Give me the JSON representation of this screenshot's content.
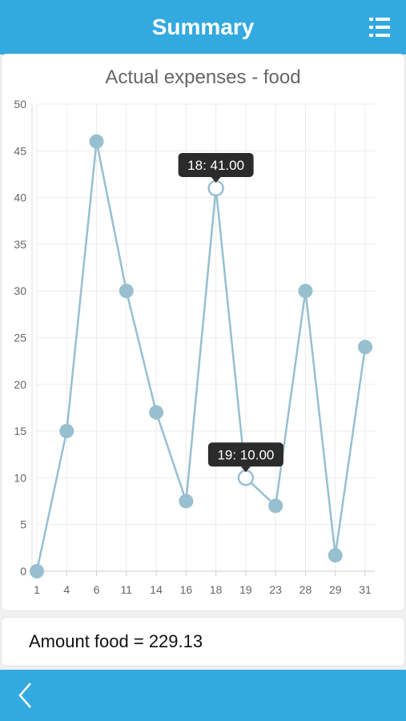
{
  "header": {
    "title": "Summary",
    "menu_icon": "list-menu-icon"
  },
  "footer": {
    "back_icon": "chevron-left-icon"
  },
  "summary": {
    "amount_text": "Amount food = 229.13"
  },
  "colors": {
    "accent": "#33aadf",
    "line": "#97bfd0",
    "point": "#97bfd0",
    "tooltip_bg": "#2b2b2b"
  },
  "chart_data": {
    "type": "line",
    "title": "Actual expenses - food",
    "xlabel": "",
    "ylabel": "",
    "categories": [
      "1",
      "4",
      "6",
      "11",
      "14",
      "16",
      "18",
      "19",
      "23",
      "28",
      "29",
      "31"
    ],
    "values": [
      0,
      15,
      46,
      30,
      17,
      7.5,
      41,
      10,
      7,
      30,
      1.7,
      24
    ],
    "ylim": [
      0,
      50
    ],
    "yticks": [
      0,
      5,
      10,
      15,
      20,
      25,
      30,
      35,
      40,
      45,
      50
    ],
    "grid": true,
    "tooltips": [
      {
        "index": 6,
        "text": "18: 41.00"
      },
      {
        "index": 7,
        "text": "19: 10.00"
      }
    ]
  }
}
